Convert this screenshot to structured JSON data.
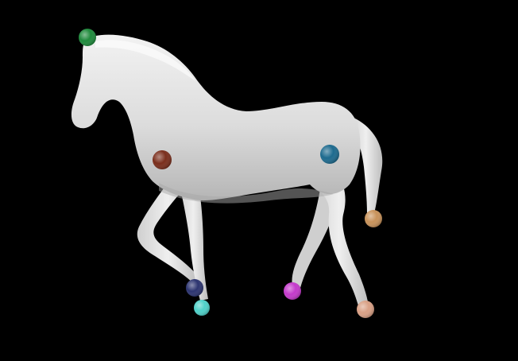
{
  "scene": {
    "subject": "horse-3d-mesh",
    "background_color": "#000000",
    "mesh_color": "#e6e6e6",
    "mesh_shadow_color": "#9a9a9a"
  },
  "keypoints": [
    {
      "name": "head-top",
      "color": "#1f8a3c"
    },
    {
      "name": "chest",
      "color": "#7a2e1c"
    },
    {
      "name": "hip",
      "color": "#1d6a8e"
    },
    {
      "name": "tail-tip",
      "color": "#c8925a"
    },
    {
      "name": "front-hoof-upper",
      "color": "#2c3470"
    },
    {
      "name": "front-hoof-lower",
      "color": "#4fd1c9"
    },
    {
      "name": "hind-hoof-left",
      "color": "#c43acb"
    },
    {
      "name": "hind-hoof-right",
      "color": "#d9a085"
    }
  ]
}
